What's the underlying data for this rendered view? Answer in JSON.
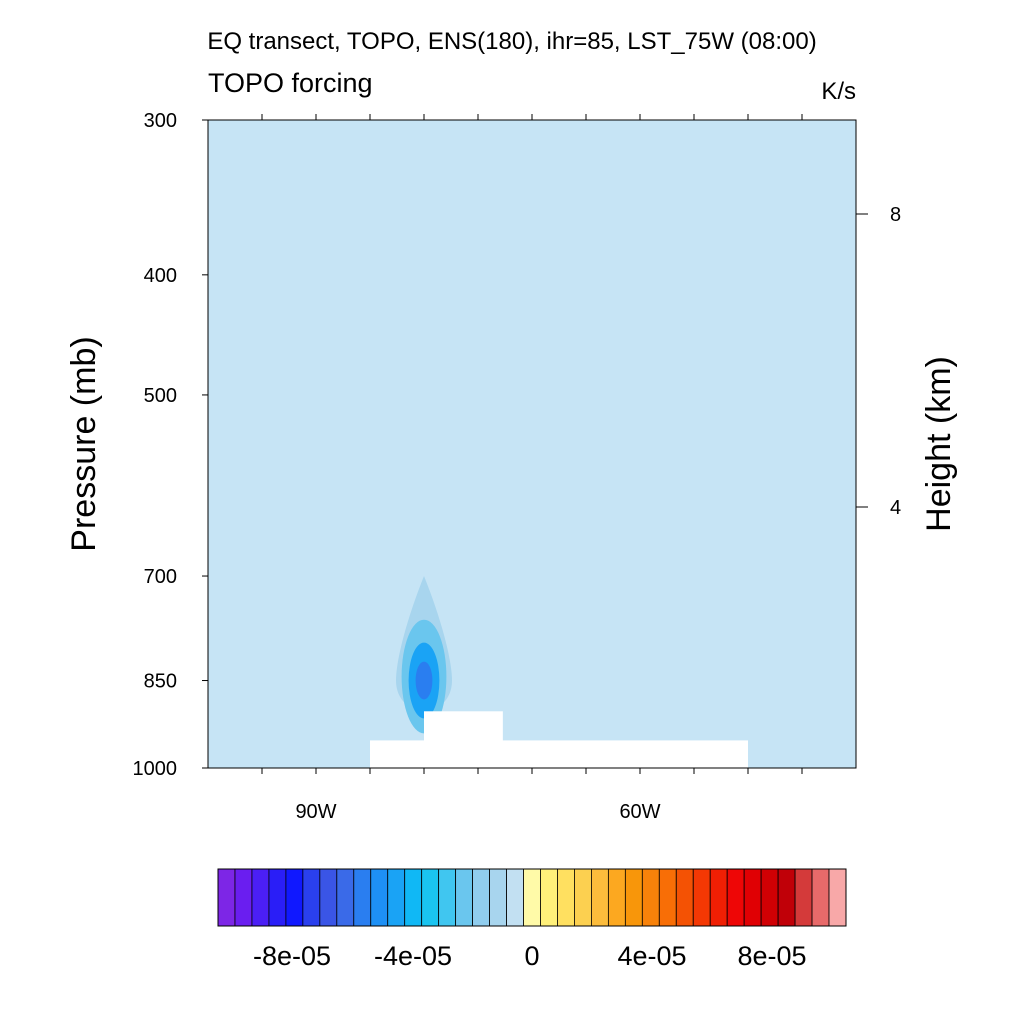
{
  "chart_data": {
    "type": "heatmap",
    "title": "EQ transect, TOPO, ENS(180), ihr=85, LST_75W (08:00)",
    "left_label": "TOPO forcing",
    "right_label": "K/s",
    "ylabel": "Pressure (mb)",
    "ylabel_right": "Height (km)",
    "x_range": [
      "100W",
      "40W"
    ],
    "x_ticks": [
      {
        "label": "",
        "lon": -95
      },
      {
        "label": "90W",
        "lon": -90
      },
      {
        "label": "",
        "lon": -85
      },
      {
        "label": "",
        "lon": -80
      },
      {
        "label": "",
        "lon": -75
      },
      {
        "label": "",
        "lon": -70
      },
      {
        "label": "",
        "lon": -65
      },
      {
        "label": "60W",
        "lon": -60
      },
      {
        "label": "",
        "lon": -55
      },
      {
        "label": "",
        "lon": -50
      },
      {
        "label": "",
        "lon": -45
      }
    ],
    "y_range_mb": [
      1000,
      300
    ],
    "y_scale": "log",
    "y_ticks_mb": [
      300,
      400,
      500,
      700,
      850,
      1000
    ],
    "y_ticks_right_km": [
      4,
      8
    ],
    "background_value": 0,
    "background_color": "#c6e4f5",
    "terrain_mask": [
      {
        "lon_start": -85,
        "lon_end": -50,
        "top_mb": 950
      },
      {
        "lon_start": -80,
        "lon_end": -72.7,
        "top_mb": 900
      }
    ],
    "anomaly": {
      "center_lon": -80,
      "center_mb": 850,
      "min_value": -4e-05,
      "extent_top_mb": 700,
      "extent_bottom_mb": 900
    },
    "colorbar": {
      "labels": [
        {
          "text": "-8e-05",
          "value": -8e-05
        },
        {
          "text": "-4e-05",
          "value": -4e-05
        },
        {
          "text": "0",
          "value": 0
        },
        {
          "text": "4e-05",
          "value": 4e-05
        },
        {
          "text": "8e-05",
          "value": 8e-05
        }
      ],
      "colors": [
        "#7d26e6",
        "#6a1ef0",
        "#4b1ff5",
        "#2a1ef7",
        "#1018ff",
        "#2a40ee",
        "#3a55e6",
        "#3a6ae8",
        "#2a7ef0",
        "#1e90f5",
        "#1aa3f5",
        "#10b8f5",
        "#1ac4f0",
        "#40c6f0",
        "#6ac6ee",
        "#90cdee",
        "#a8d5ee",
        "#c2e0f2",
        "#fffaa8",
        "#fff07a",
        "#ffe060",
        "#fcd050",
        "#fcbc3c",
        "#fca820",
        "#f8960a",
        "#f8820a",
        "#f86e06",
        "#f45204",
        "#f43804",
        "#f01f04",
        "#ee0606",
        "#e00004",
        "#d00004",
        "#c00008",
        "#d43a3a",
        "#e86a6a",
        "#f8a8a8"
      ]
    }
  }
}
